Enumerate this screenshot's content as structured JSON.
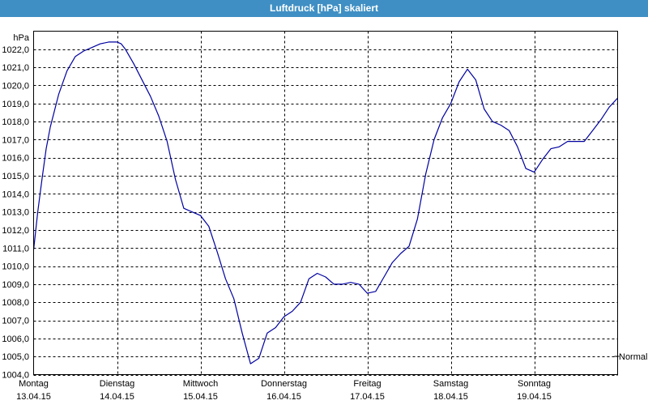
{
  "window": {
    "title": "Luftdruck [hPa] skaliert"
  },
  "chart_data": {
    "type": "line",
    "title": "Luftdruck [hPa] skaliert",
    "ylabel": "hPa",
    "ylim": [
      1004.0,
      1023.0
    ],
    "yticks": [
      1004,
      1005,
      1006,
      1007,
      1008,
      1009,
      1010,
      1011,
      1012,
      1013,
      1014,
      1015,
      1016,
      1017,
      1018,
      1019,
      1020,
      1021,
      1022
    ],
    "ytick_labels": [
      "1004,0",
      "1005,0",
      "1006,0",
      "1007,0",
      "1008,0",
      "1009,0",
      "1010,0",
      "1011,0",
      "1012,0",
      "1013,0",
      "1014,0",
      "1015,0",
      "1016,0",
      "1017,0",
      "1018,0",
      "1019,0",
      "1020,0",
      "1021,0",
      "1022,0"
    ],
    "xlim": [
      0,
      7
    ],
    "x_categories": [
      {
        "day": "Montag",
        "date": "13.04.15"
      },
      {
        "day": "Dienstag",
        "date": "14.04.15"
      },
      {
        "day": "Mittwoch",
        "date": "15.04.15"
      },
      {
        "day": "Donnerstag",
        "date": "16.04.15"
      },
      {
        "day": "Freitag",
        "date": "17.04.15"
      },
      {
        "day": "Samstag",
        "date": "18.04.15"
      },
      {
        "day": "Sonntag",
        "date": "19.04.15"
      }
    ],
    "grid": true,
    "annotation": "Normal",
    "line_color": "#0000a0",
    "series": [
      {
        "x": [
          0.0,
          0.05,
          0.1,
          0.15,
          0.2,
          0.3,
          0.4,
          0.5,
          0.6,
          0.7,
          0.8,
          0.9,
          1.0,
          1.05,
          1.1,
          1.2,
          1.3,
          1.4,
          1.5,
          1.6,
          1.7,
          1.8,
          1.9,
          2.0,
          2.1,
          2.2,
          2.3,
          2.4,
          2.5,
          2.6,
          2.7,
          2.8,
          2.9,
          3.0,
          3.1,
          3.2,
          3.3,
          3.4,
          3.5,
          3.6,
          3.7,
          3.8,
          3.9,
          4.0,
          4.1,
          4.2,
          4.3,
          4.4,
          4.5,
          4.6,
          4.7,
          4.8,
          4.9,
          5.0,
          5.1,
          5.2,
          5.3,
          5.4,
          5.5,
          5.6,
          5.7,
          5.8,
          5.9,
          6.0,
          6.1,
          6.2,
          6.3,
          6.4,
          6.5,
          6.6,
          6.7,
          6.8,
          6.9,
          7.0
        ],
        "y": [
          1010.9,
          1013.0,
          1014.8,
          1016.5,
          1017.7,
          1019.5,
          1020.8,
          1021.6,
          1021.9,
          1022.1,
          1022.3,
          1022.4,
          1022.4,
          1022.3,
          1022.0,
          1021.2,
          1020.3,
          1019.4,
          1018.3,
          1016.9,
          1014.8,
          1013.2,
          1013.0,
          1012.8,
          1012.2,
          1010.8,
          1009.3,
          1008.2,
          1006.3,
          1004.6,
          1004.9,
          1006.3,
          1006.6,
          1007.2,
          1007.5,
          1008.0,
          1009.3,
          1009.6,
          1009.4,
          1009.0,
          1009.0,
          1009.1,
          1009.0,
          1008.5,
          1008.6,
          1009.4,
          1010.2,
          1010.7,
          1011.1,
          1012.6,
          1015.1,
          1017.0,
          1018.2,
          1019.0,
          1020.2,
          1020.9,
          1020.3,
          1018.7,
          1018.0,
          1017.8,
          1017.5,
          1016.6,
          1015.4,
          1015.2,
          1015.9,
          1016.5,
          1016.6,
          1016.9,
          1016.9,
          1016.9,
          1017.5,
          1018.1,
          1018.8,
          1019.3
        ]
      }
    ]
  }
}
